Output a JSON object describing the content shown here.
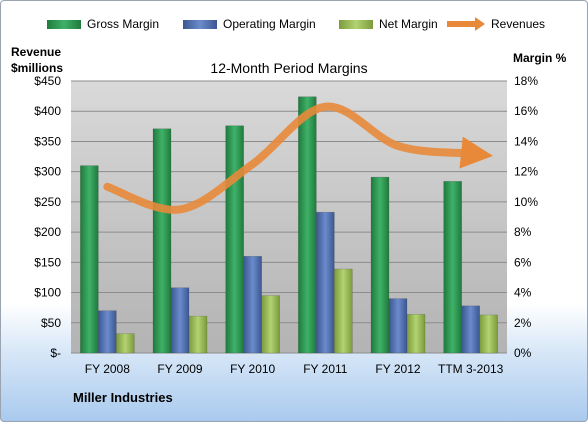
{
  "chart_data": {
    "type": "bar",
    "title": "12-Month Period Margins",
    "company": "Miller Industries",
    "categories": [
      "FY 2008",
      "FY 2009",
      "FY 2010",
      "FY 2011",
      "FY 2012",
      "TTM 3-2013"
    ],
    "series": [
      {
        "name": "Gross Margin",
        "axis": "left",
        "values": [
          310,
          371,
          376,
          424,
          291,
          284
        ],
        "color": "#2e9a52"
      },
      {
        "name": "Operating Margin",
        "axis": "left",
        "values": [
          70,
          108,
          160,
          233,
          90,
          78
        ],
        "color": "#5472b4"
      },
      {
        "name": "Net Margin",
        "axis": "left",
        "values": [
          32,
          61,
          95,
          139,
          64,
          63
        ],
        "color": "#9abf56"
      },
      {
        "name": "Revenues",
        "axis": "right",
        "type": "line",
        "values": [
          11.0,
          9.5,
          12.5,
          16.3,
          13.7,
          13.2
        ],
        "color": "#e8893a"
      }
    ],
    "y_left": {
      "label_line1": "Revenue",
      "label_line2": "$millions",
      "min": 0,
      "max": 450,
      "step": 50,
      "ticks": [
        "$-",
        "$50",
        "$100",
        "$150",
        "$200",
        "$250",
        "$300",
        "$350",
        "$400",
        "$450"
      ]
    },
    "y_right": {
      "label": "Margin %",
      "min": 0,
      "max": 18,
      "step": 2,
      "ticks": [
        "0%",
        "2%",
        "4%",
        "6%",
        "8%",
        "10%",
        "12%",
        "14%",
        "16%",
        "18%"
      ]
    },
    "grid": true,
    "legend_position": "top"
  }
}
